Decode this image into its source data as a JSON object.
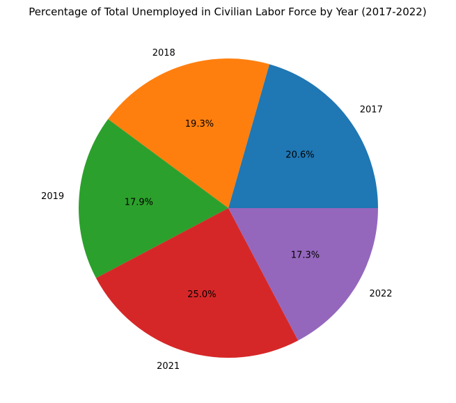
{
  "chart_data": {
    "type": "pie",
    "title": "Percentage of Total Unemployed in Civilian Labor Force by Year (2017-2022)",
    "categories": [
      "2017",
      "2018",
      "2019",
      "2021",
      "2022"
    ],
    "values": [
      20.6,
      19.3,
      17.9,
      25.0,
      17.3
    ],
    "percent_labels": [
      "20.6%",
      "19.3%",
      "17.9%",
      "25.0%",
      "17.3%"
    ],
    "colors": [
      "#1f77b4",
      "#ff7f0e",
      "#2ca02c",
      "#d62728",
      "#9467bd"
    ],
    "start_angle_deg": 0,
    "direction": "counterclockwise"
  }
}
